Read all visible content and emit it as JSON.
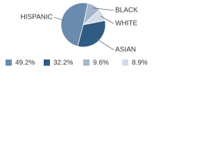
{
  "chart_data": {
    "type": "pie",
    "categories": [
      "BLACK",
      "WHITE",
      "ASIAN",
      "HISPANIC"
    ],
    "values": [
      9.6,
      8.9,
      32.2,
      49.2
    ],
    "value_labels": [
      "9.6%",
      "8.9%",
      "32.2%",
      "49.2%"
    ],
    "colors": [
      "#a3b6cc",
      "#d3dde8",
      "#2f5b82",
      "#6a8bad"
    ]
  }
}
